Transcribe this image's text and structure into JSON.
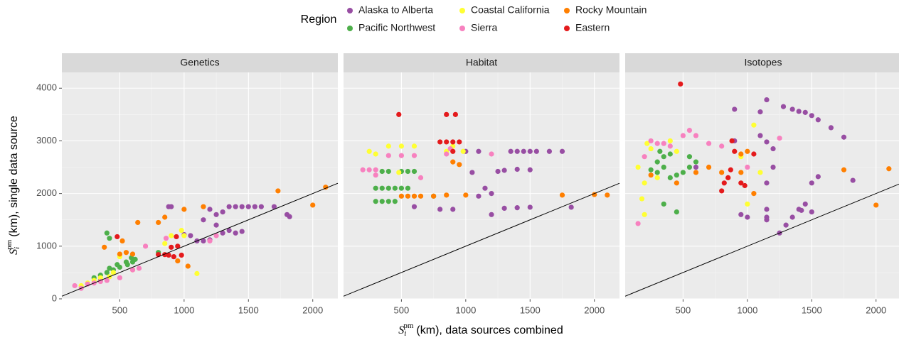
{
  "legend": {
    "title": "Region",
    "position": "top"
  },
  "x_label": {
    "symbol": "S",
    "subscript": "i",
    "superscript": "pm",
    "text": "(km), data sources combined"
  },
  "y_label": {
    "symbol": "S",
    "subscript": "i",
    "superscript": "pm",
    "text": "(km), single data source"
  },
  "chart_data": [
    {
      "type": "scatter",
      "title": "Genetics",
      "xlim": [
        50,
        2195
      ],
      "ylim": [
        0,
        4300
      ],
      "xticks": [
        500,
        1000,
        1500,
        2000
      ],
      "yticks": [
        0,
        1000,
        2000,
        3000,
        4000
      ],
      "grid": true,
      "identity_line": true,
      "series": [
        {
          "name": "Alaska to Alberta",
          "color": "#984ea3",
          "x": [
            880,
            900,
            1000,
            1050,
            1100,
            1150,
            1150,
            1200,
            1250,
            1300,
            1300,
            1350,
            1400,
            1400,
            1450,
            1500,
            1550,
            1600,
            1700,
            1800,
            1820,
            1200,
            1250,
            1350,
            1450
          ],
          "y": [
            1750,
            1750,
            1220,
            1200,
            1100,
            1100,
            1500,
            1700,
            1600,
            1650,
            1250,
            1750,
            1750,
            1250,
            1280,
            1750,
            1750,
            1750,
            1750,
            1600,
            1560,
            1120,
            1400,
            1300,
            1750
          ]
        },
        {
          "name": "Pacific Northwest",
          "color": "#4daf4a",
          "x": [
            400,
            420,
            300,
            350,
            400,
            450,
            500,
            550,
            600,
            620,
            350,
            480,
            560,
            420,
            590,
            800
          ],
          "y": [
            1250,
            1150,
            400,
            450,
            500,
            550,
            600,
            700,
            700,
            750,
            350,
            650,
            650,
            580,
            780,
            880
          ]
        },
        {
          "name": "Coastal California",
          "color": "#ffff33",
          "x": [
            200,
            250,
            300,
            350,
            450,
            500,
            600,
            850,
            900,
            1000,
            1100,
            980,
            420
          ],
          "y": [
            250,
            300,
            350,
            400,
            500,
            800,
            550,
            1050,
            1200,
            1200,
            480,
            1300,
            420
          ]
        },
        {
          "name": "Sierra",
          "color": "#f781bf",
          "x": [
            150,
            200,
            250,
            300,
            400,
            500,
            600,
            650,
            700,
            860,
            1200,
            1250,
            350
          ],
          "y": [
            250,
            200,
            280,
            300,
            350,
            400,
            550,
            580,
            1000,
            1150,
            1100,
            1200,
            330
          ]
        },
        {
          "name": "Rocky Mountain",
          "color": "#ff7f00",
          "x": [
            380,
            500,
            550,
            600,
            640,
            800,
            850,
            950,
            1000,
            1030,
            1150,
            1730,
            2000,
            2100,
            520
          ],
          "y": [
            980,
            850,
            880,
            850,
            1450,
            1450,
            1550,
            720,
            1700,
            620,
            1750,
            2050,
            1780,
            2120,
            1100
          ]
        },
        {
          "name": "Eastern",
          "color": "#e41a1c",
          "x": [
            480,
            800,
            850,
            900,
            950,
            920,
            980,
            940,
            880
          ],
          "y": [
            1180,
            840,
            840,
            980,
            1000,
            800,
            830,
            1180,
            830
          ]
        }
      ]
    },
    {
      "type": "scatter",
      "title": "Habitat",
      "xlim": [
        50,
        2195
      ],
      "ylim": [
        0,
        4300
      ],
      "xticks": [
        500,
        1000,
        1500,
        2000
      ],
      "yticks": [
        0,
        1000,
        2000,
        3000,
        4000
      ],
      "grid": true,
      "identity_line": true,
      "series": [
        {
          "name": "Alaska to Alberta",
          "color": "#984ea3",
          "x": [
            1100,
            1150,
            1200,
            1100,
            1250,
            1300,
            1400,
            1500,
            1350,
            1400,
            1450,
            1500,
            1550,
            1650,
            1750,
            1300,
            1400,
            1500,
            900,
            800,
            1000,
            1050,
            1820,
            600,
            1200
          ],
          "y": [
            2800,
            2100,
            2000,
            1950,
            2420,
            2440,
            2460,
            2450,
            2800,
            2800,
            2800,
            2800,
            2800,
            2800,
            2800,
            1720,
            1730,
            1740,
            1700,
            1700,
            2800,
            2400,
            1740,
            1750,
            1600
          ]
        },
        {
          "name": "Pacific Northwest",
          "color": "#4daf4a",
          "x": [
            300,
            350,
            400,
            450,
            500,
            550,
            300,
            350,
            400,
            450,
            350,
            400,
            500,
            550,
            600,
            750
          ],
          "y": [
            2100,
            2100,
            2100,
            2100,
            2100,
            2100,
            1850,
            1850,
            1850,
            1850,
            2420,
            2420,
            2420,
            2420,
            2420,
            1950
          ]
        },
        {
          "name": "Coastal California",
          "color": "#ffff33",
          "x": [
            250,
            300,
            400,
            500,
            600,
            850,
            900,
            980,
            480
          ],
          "y": [
            2800,
            2750,
            2900,
            2900,
            2900,
            2800,
            2900,
            2800,
            2400
          ]
        },
        {
          "name": "Sierra",
          "color": "#f781bf",
          "x": [
            200,
            250,
            300,
            400,
            500,
            600,
            300,
            650,
            850,
            1200,
            880
          ],
          "y": [
            2450,
            2450,
            2450,
            2720,
            2720,
            2720,
            2350,
            2300,
            2750,
            2750,
            2850
          ]
        },
        {
          "name": "Rocky Mountain",
          "color": "#ff7f00",
          "x": [
            500,
            550,
            600,
            650,
            750,
            850,
            950,
            1000,
            1750,
            2000,
            2100,
            900
          ],
          "y": [
            1950,
            1950,
            1950,
            1950,
            1950,
            1970,
            2550,
            1970,
            1970,
            1980,
            1970,
            2600
          ]
        },
        {
          "name": "Eastern",
          "color": "#e41a1c",
          "x": [
            480,
            850,
            920,
            800,
            850,
            900,
            950,
            900
          ],
          "y": [
            3500,
            3500,
            3500,
            2980,
            2980,
            2980,
            2980,
            2800
          ]
        }
      ]
    },
    {
      "type": "scatter",
      "title": "Isotopes",
      "xlim": [
        50,
        2195
      ],
      "ylim": [
        0,
        4300
      ],
      "xticks": [
        500,
        1000,
        1500,
        2000
      ],
      "yticks": [
        0,
        1000,
        2000,
        3000,
        4000
      ],
      "grid": true,
      "identity_line": true,
      "series": [
        {
          "name": "Alaska to Alberta",
          "color": "#984ea3",
          "x": [
            1150,
            1100,
            1280,
            1350,
            1400,
            1450,
            1500,
            1550,
            1650,
            1750,
            1820,
            1100,
            1150,
            1200,
            1200,
            1150,
            1250,
            1300,
            1350,
            1400,
            1450,
            1500,
            1550,
            1150,
            1150,
            950,
            1000,
            900,
            600,
            900,
            1150,
            1420,
            1500
          ],
          "y": [
            3780,
            3550,
            3650,
            3600,
            3560,
            3540,
            3480,
            3400,
            3250,
            3070,
            2250,
            3100,
            2980,
            2850,
            2500,
            2200,
            1250,
            1400,
            1550,
            1700,
            1800,
            2200,
            2320,
            1700,
            1550,
            1600,
            1550,
            3000,
            2500,
            3600,
            1500,
            1680,
            1650
          ]
        },
        {
          "name": "Pacific Northwest",
          "color": "#4daf4a",
          "x": [
            300,
            350,
            400,
            300,
            350,
            400,
            450,
            500,
            550,
            600,
            350,
            450,
            250,
            550,
            320
          ],
          "y": [
            2600,
            2700,
            2750,
            2400,
            2500,
            2300,
            2350,
            2400,
            2500,
            2600,
            1800,
            1650,
            2450,
            2700,
            2800
          ]
        },
        {
          "name": "Coastal California",
          "color": "#ffff33",
          "x": [
            150,
            200,
            180,
            200,
            250,
            300,
            450,
            1050,
            1100,
            1000,
            950,
            220,
            400
          ],
          "y": [
            2500,
            2200,
            1900,
            1600,
            2850,
            2300,
            2800,
            3300,
            2400,
            1800,
            2700,
            2950,
            3000
          ]
        },
        {
          "name": "Sierra",
          "color": "#f781bf",
          "x": [
            150,
            200,
            250,
            300,
            400,
            500,
            550,
            600,
            700,
            800,
            1250,
            1000,
            350
          ],
          "y": [
            1430,
            2700,
            3000,
            2950,
            2900,
            3100,
            3200,
            3100,
            2950,
            2900,
            3050,
            2500,
            2950
          ]
        },
        {
          "name": "Rocky Mountain",
          "color": "#ff7f00",
          "x": [
            250,
            450,
            600,
            800,
            850,
            950,
            1000,
            1050,
            1750,
            2000,
            2100,
            700,
            950
          ],
          "y": [
            2350,
            2200,
            2400,
            2400,
            2300,
            2750,
            2800,
            2000,
            2450,
            1780,
            2470,
            2500,
            2400
          ]
        },
        {
          "name": "Eastern",
          "color": "#e41a1c",
          "x": [
            480,
            800,
            820,
            850,
            870,
            900,
            950,
            980,
            1050,
            880
          ],
          "y": [
            4080,
            2050,
            2200,
            2300,
            2450,
            2800,
            2200,
            2150,
            2750,
            3000
          ]
        }
      ]
    }
  ]
}
